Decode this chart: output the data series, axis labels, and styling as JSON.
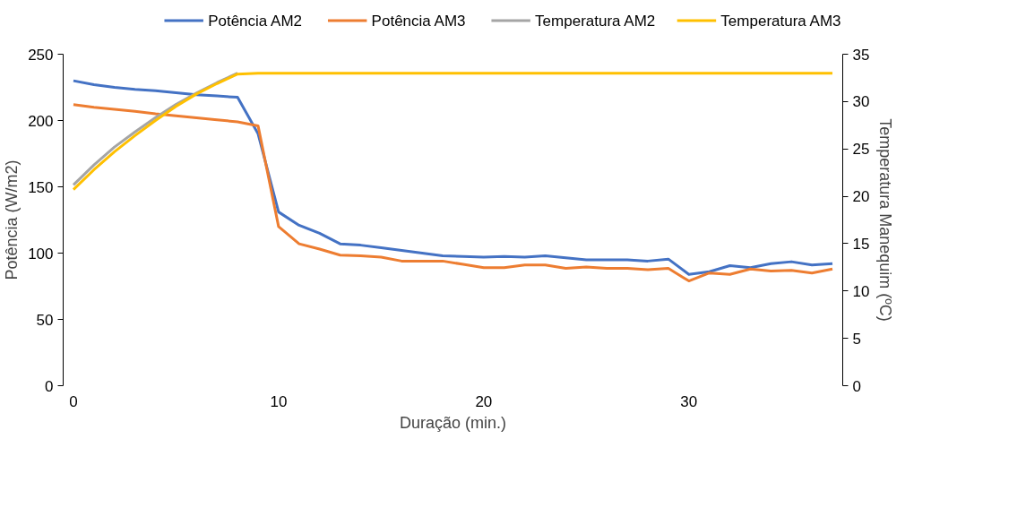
{
  "chart_data": {
    "type": "line",
    "xlabel": "Duração (min.)",
    "ylabel": "Potência (W/m2)",
    "y2label": "Temperatura Manequim (ºC)",
    "x": [
      0,
      1,
      2,
      3,
      4,
      5,
      6,
      7,
      8,
      9,
      10,
      11,
      12,
      13,
      14,
      15,
      16,
      17,
      18,
      19,
      20,
      21,
      22,
      23,
      24,
      25,
      26,
      27,
      28,
      29,
      30,
      31,
      32,
      33,
      34,
      35,
      36,
      37
    ],
    "series": [
      {
        "name": "Potência AM2",
        "color": "#4472c4",
        "values": [
          230,
          227,
          225,
          223.5,
          222.5,
          221,
          219.5,
          218.5,
          217.5,
          190,
          131,
          121,
          115,
          107,
          106,
          104,
          102,
          100,
          98,
          97.5,
          97,
          97.5,
          97,
          98,
          96.5,
          95,
          95,
          95,
          94,
          95.5,
          84,
          86,
          90.5,
          89,
          92,
          93.5,
          91,
          92
        ]
      },
      {
        "name": "Potência AM3",
        "color": "#ed7d31",
        "values": [
          212,
          210,
          208.5,
          207,
          205,
          203.5,
          202,
          200.5,
          199,
          196,
          120,
          107,
          103,
          98.5,
          98,
          97,
          94,
          94,
          94,
          91.5,
          89,
          89,
          91,
          91,
          88.5,
          89.5,
          88.5,
          88.5,
          87.5,
          88.5,
          79,
          85,
          84,
          88,
          86.5,
          87,
          85,
          88
        ]
      },
      {
        "name": "Temperatura AM2",
        "color": "#a5a5a5",
        "axis": "y2",
        "values": [
          21.2,
          23.3,
          25.2,
          26.8,
          28.3,
          29.7,
          30.9,
          32.0,
          33,
          null,
          null,
          null,
          null,
          null,
          null,
          null,
          null,
          null,
          null,
          null,
          null,
          null,
          null,
          null,
          null,
          null,
          null,
          null,
          null,
          null,
          null,
          null,
          null,
          null,
          null,
          null,
          null,
          null
        ]
      },
      {
        "name": "Temperatura AM3",
        "color": "#ffc000",
        "axis": "y2",
        "values": [
          20.7,
          22.8,
          24.7,
          26.4,
          28.0,
          29.5,
          30.8,
          31.9,
          32.9,
          33,
          33,
          33,
          33,
          33,
          33,
          33,
          33,
          33,
          33,
          33,
          33,
          33,
          33,
          33,
          33,
          33,
          33,
          33,
          33,
          33,
          33,
          33,
          33,
          33,
          33,
          33,
          33,
          33
        ]
      }
    ],
    "xlim": [
      -0.5,
      37.5
    ],
    "xticks": [
      0,
      10,
      20,
      30
    ],
    "ylim": [
      0,
      250
    ],
    "yticks": [
      0,
      50,
      100,
      150,
      200,
      250
    ],
    "y2lim": [
      0,
      35
    ],
    "y2ticks": [
      0,
      5,
      10,
      15,
      20,
      25,
      30,
      35
    ],
    "legend": "top",
    "grid": false,
    "marker": "none",
    "line_style": "solid"
  }
}
